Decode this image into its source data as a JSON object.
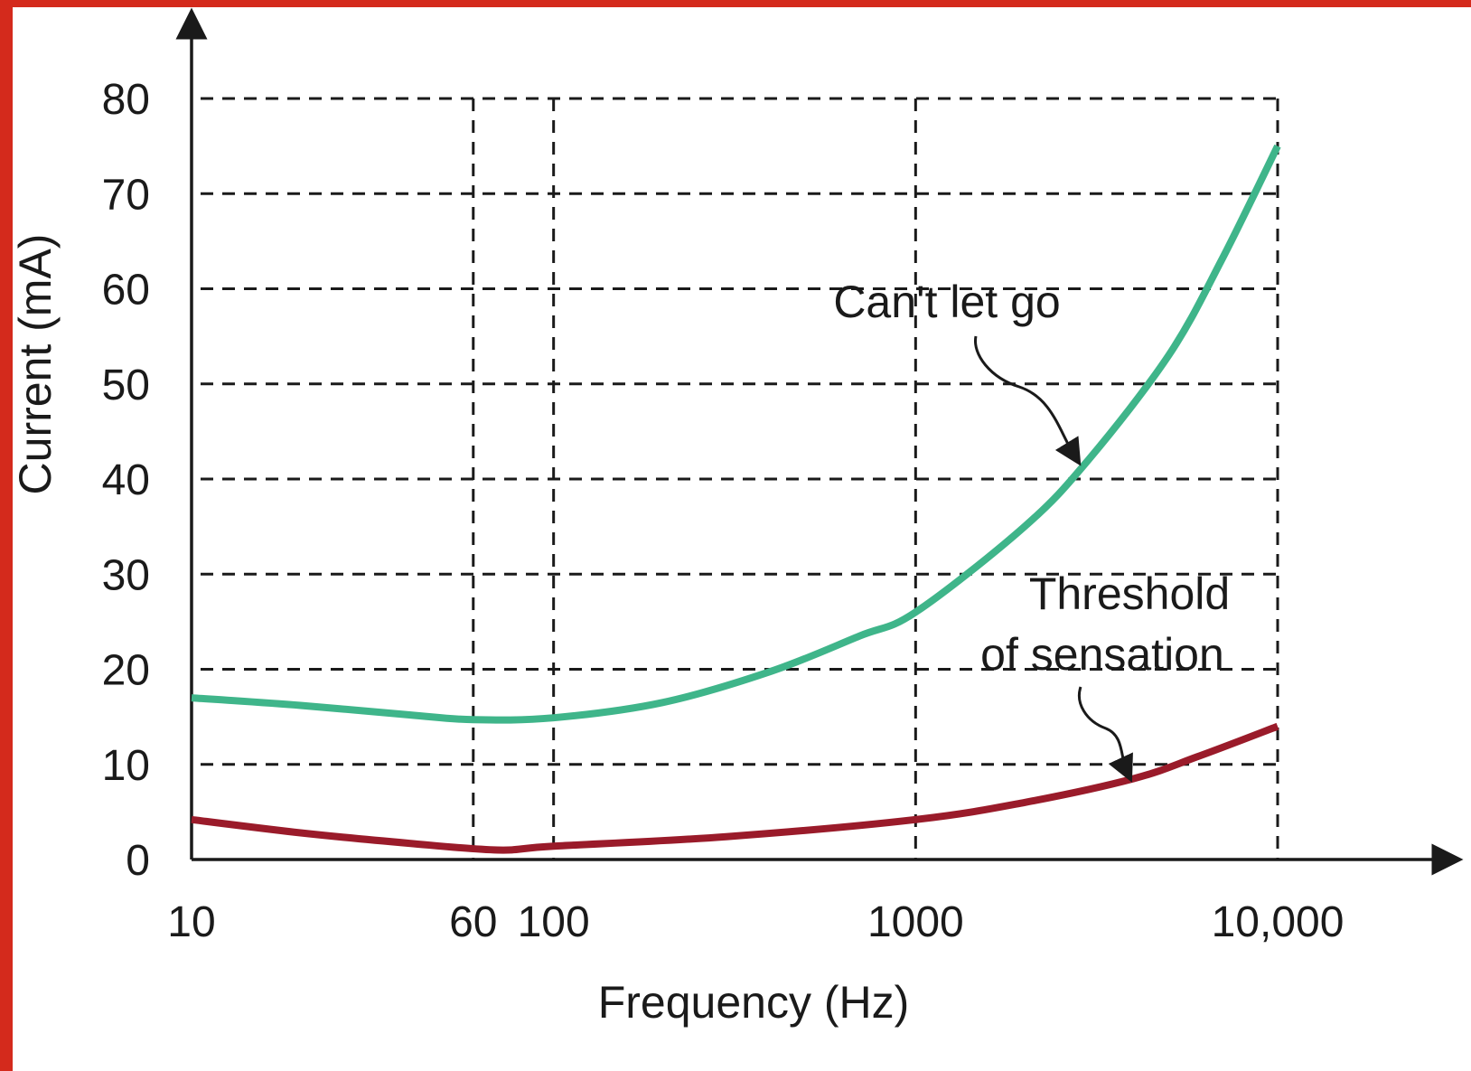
{
  "chart_data": {
    "type": "line",
    "xlabel": "Frequency (Hz)",
    "ylabel": "Current (mA)",
    "x_scale": "log",
    "xlim": [
      10,
      10000
    ],
    "ylim": [
      0,
      80
    ],
    "x_ticks": [
      {
        "value": 10,
        "label": "10"
      },
      {
        "value": 60,
        "label": "60"
      },
      {
        "value": 100,
        "label": "100"
      },
      {
        "value": 1000,
        "label": "1000"
      },
      {
        "value": 10000,
        "label": "10,000"
      }
    ],
    "y_ticks": [
      {
        "value": 0,
        "label": "0"
      },
      {
        "value": 10,
        "label": "10"
      },
      {
        "value": 20,
        "label": "20"
      },
      {
        "value": 30,
        "label": "30"
      },
      {
        "value": 40,
        "label": "40"
      },
      {
        "value": 50,
        "label": "50"
      },
      {
        "value": 60,
        "label": "60"
      },
      {
        "value": 70,
        "label": "70"
      },
      {
        "value": 80,
        "label": "80"
      }
    ],
    "grid": true,
    "grid_x": [
      10,
      60,
      100,
      1000,
      10000
    ],
    "grid_y": [
      10,
      20,
      30,
      40,
      50,
      60,
      70,
      80
    ],
    "annotations": [
      {
        "text": "Can't let go",
        "series": "cant_let_go",
        "points_to": {
          "x": 2800,
          "y": 42
        }
      },
      {
        "text": "Threshold",
        "series": "threshold",
        "points_to": {
          "x": 4000,
          "y": 9
        }
      },
      {
        "text": "of sensation",
        "series": "threshold"
      }
    ],
    "series": [
      {
        "id": "cant_let_go",
        "color": "#3fb58a",
        "points": [
          {
            "x": 10,
            "y": 17
          },
          {
            "x": 20,
            "y": 16.2
          },
          {
            "x": 40,
            "y": 15.2
          },
          {
            "x": 60,
            "y": 14.7
          },
          {
            "x": 100,
            "y": 14.9
          },
          {
            "x": 200,
            "y": 16.5
          },
          {
            "x": 400,
            "y": 19.8
          },
          {
            "x": 700,
            "y": 23.5
          },
          {
            "x": 1000,
            "y": 26
          },
          {
            "x": 2000,
            "y": 35
          },
          {
            "x": 3000,
            "y": 42
          },
          {
            "x": 5000,
            "y": 53
          },
          {
            "x": 7000,
            "y": 63
          },
          {
            "x": 10000,
            "y": 75
          }
        ]
      },
      {
        "id": "threshold",
        "color": "#9a1b2a",
        "points": [
          {
            "x": 10,
            "y": 4.2
          },
          {
            "x": 20,
            "y": 2.8
          },
          {
            "x": 40,
            "y": 1.7
          },
          {
            "x": 70,
            "y": 1.0
          },
          {
            "x": 100,
            "y": 1.4
          },
          {
            "x": 300,
            "y": 2.4
          },
          {
            "x": 1000,
            "y": 4.2
          },
          {
            "x": 2000,
            "y": 6.0
          },
          {
            "x": 4000,
            "y": 8.5
          },
          {
            "x": 6000,
            "y": 10.8
          },
          {
            "x": 10000,
            "y": 14
          }
        ]
      }
    ]
  }
}
